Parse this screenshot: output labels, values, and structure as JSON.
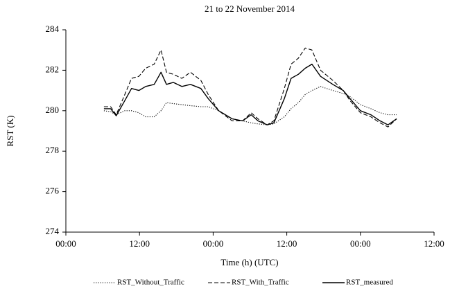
{
  "chart_data": {
    "type": "line",
    "title": "21 to 22 November 2014",
    "x_label": "Time (h) (UTC)",
    "y_label": "RST (K)",
    "x": [
      6.2,
      7.3,
      8.2,
      9.6,
      10.7,
      11.9,
      13.0,
      14.4,
      15.5,
      16.4,
      17.5,
      18.9,
      20.3,
      22.0,
      23.2,
      24.9,
      27.1,
      28.8,
      30.2,
      31.3,
      32.8,
      33.9,
      35.6,
      36.7,
      37.9,
      39.0,
      40.1,
      41.5,
      43.5,
      45.2,
      46.3,
      48.0,
      49.7,
      51.2,
      52.5,
      53.9
    ],
    "series": [
      {
        "name": "RST_Without_Traffic",
        "color": "#000000",
        "line_style": "dotted",
        "values": [
          280.0,
          279.95,
          279.8,
          280.0,
          280.0,
          279.9,
          279.7,
          279.7,
          280.0,
          280.4,
          280.35,
          280.3,
          280.25,
          280.2,
          280.2,
          280.0,
          279.6,
          279.5,
          279.4,
          279.35,
          279.3,
          279.35,
          279.7,
          280.1,
          280.4,
          280.8,
          281.0,
          281.2,
          281.0,
          280.85,
          280.7,
          280.3,
          280.1,
          279.9,
          279.8,
          279.8
        ]
      },
      {
        "name": "RST_With_Traffic",
        "color": "#000000",
        "line_style": "dashed",
        "values": [
          280.2,
          280.2,
          279.8,
          280.8,
          281.6,
          281.7,
          282.1,
          282.3,
          283.0,
          281.9,
          281.8,
          281.6,
          281.9,
          281.5,
          280.8,
          280.0,
          279.5,
          279.5,
          279.9,
          279.6,
          279.3,
          279.5,
          281.1,
          282.3,
          282.6,
          283.1,
          283.0,
          282.0,
          281.5,
          281.0,
          280.5,
          279.9,
          279.7,
          279.4,
          279.2,
          279.6
        ]
      },
      {
        "name": "RST_measured",
        "color": "#000000",
        "line_style": "solid",
        "values": [
          280.1,
          280.1,
          279.75,
          280.5,
          281.1,
          281.0,
          281.2,
          281.3,
          281.9,
          281.3,
          281.4,
          281.2,
          281.3,
          281.1,
          280.6,
          280.0,
          279.6,
          279.5,
          279.8,
          279.5,
          279.3,
          279.4,
          280.6,
          281.6,
          281.8,
          282.1,
          282.3,
          281.7,
          281.3,
          281.0,
          280.6,
          280.0,
          279.8,
          279.5,
          279.3,
          279.6
        ]
      }
    ],
    "xlim": [
      0,
      60
    ],
    "xticks": [
      {
        "value": 0,
        "label": "00:00"
      },
      {
        "value": 12,
        "label": "12:00"
      },
      {
        "value": 24,
        "label": "00:00"
      },
      {
        "value": 36,
        "label": "12:00"
      },
      {
        "value": 48,
        "label": "00:00"
      },
      {
        "value": 60,
        "label": "12:00"
      }
    ],
    "ylim": [
      274,
      284
    ],
    "yticks": [
      274,
      276,
      278,
      280,
      282,
      284
    ],
    "grid": false,
    "legend": "bottom"
  }
}
